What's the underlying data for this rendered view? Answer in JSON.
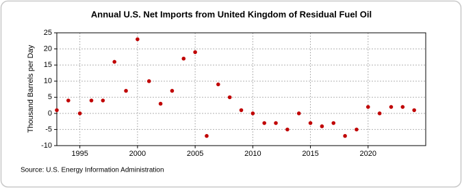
{
  "chart_data": {
    "type": "scatter",
    "title": "Annual U.S. Net Imports from United Kingdom of Residual Fuel Oil",
    "y_label": "Thousand Barrels per Day",
    "source": "Source: U.S. Energy Information Administration",
    "x": [
      1993,
      1994,
      1995,
      1996,
      1997,
      1998,
      1999,
      2000,
      2001,
      2002,
      2003,
      2004,
      2005,
      2006,
      2007,
      2008,
      2009,
      2010,
      2011,
      2012,
      2013,
      2014,
      2015,
      2016,
      2017,
      2018,
      2019,
      2020,
      2021,
      2022,
      2023,
      2024
    ],
    "series": [
      {
        "name": "Net Imports",
        "color": "#c00000",
        "values": [
          1,
          4,
          0,
          4,
          4,
          16,
          7,
          23,
          10,
          3,
          7,
          17,
          19,
          -7,
          9,
          5,
          1,
          0,
          -3,
          -3,
          -5,
          0,
          -3,
          -4,
          -3,
          -7,
          -5,
          2,
          0,
          2,
          2,
          1
        ]
      }
    ],
    "xlim": [
      1993,
      2025
    ],
    "xticks": [
      1995,
      2000,
      2005,
      2010,
      2015,
      2020
    ],
    "ylim": [
      -10,
      25
    ],
    "yticks": [
      -10,
      -5,
      0,
      5,
      10,
      15,
      20,
      25
    ],
    "grid": true
  }
}
